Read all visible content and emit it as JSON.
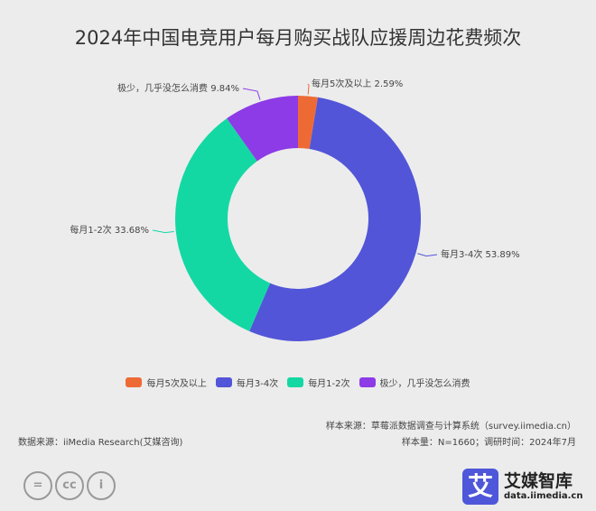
{
  "chart_data": {
    "type": "pie",
    "title": "2024年中国电竞用户每月购买战队应援周边花费频次",
    "donut": true,
    "slices": [
      {
        "name": "每月5次及以上",
        "value": 2.59,
        "label": "每月5次及以上 2.59%",
        "color": "#ee6a35"
      },
      {
        "name": "每月3-4次",
        "value": 53.89,
        "label": "每月3-4次 53.89%",
        "color": "#5255d8"
      },
      {
        "name": "每月1-2次",
        "value": 33.68,
        "label": "每月1-2次 33.68%",
        "color": "#14d8a3"
      },
      {
        "name": "极少，几乎没怎么消费",
        "value": 9.84,
        "label": "极少，几乎没怎么消费 9.84%",
        "color": "#8c3be6"
      }
    ],
    "legend_position": "bottom"
  },
  "footer": {
    "source": "数据来源：iiMedia Research(艾媒咨询)",
    "sample_source": "样本来源：草莓派数据调查与计算系统（survey.iimedia.cn）",
    "sample_size": "样本量：N=1660；调研时间：2024年7月",
    "brand": "艾媒智库",
    "brand_url": "data.iimedia.cn",
    "logo_char": "艾"
  }
}
